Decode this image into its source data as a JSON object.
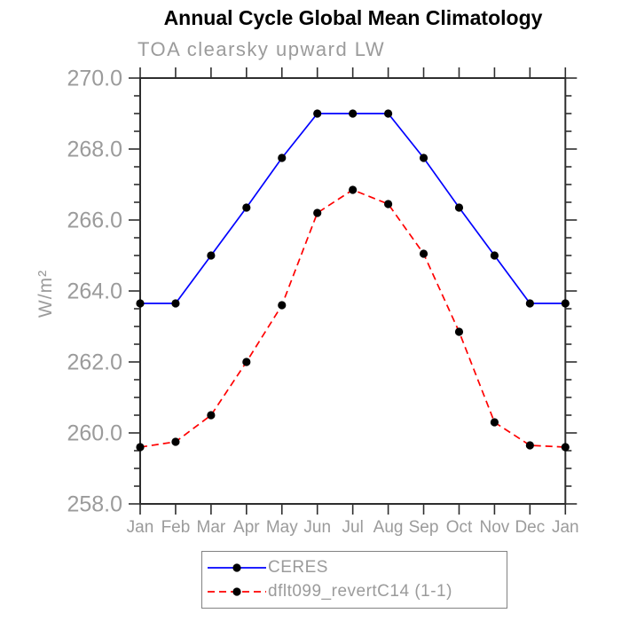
{
  "chart_data": {
    "type": "line",
    "title": "Annual Cycle Global Mean Climatology",
    "subtitle": "TOA clearsky upward LW",
    "ylabel": "W/m²",
    "xlabel": "",
    "categories": [
      "Jan",
      "Feb",
      "Mar",
      "Apr",
      "May",
      "Jun",
      "Jul",
      "Aug",
      "Sep",
      "Oct",
      "Nov",
      "Dec",
      "Jan"
    ],
    "ylim": [
      258.0,
      270.0
    ],
    "ytick_major": 2.0,
    "ytick_minor": 0.5,
    "yticks": [
      270.0,
      268.0,
      266.0,
      264.0,
      262.0,
      260.0,
      258.0
    ],
    "grid": false,
    "legend_position": "bottom-center-boxed",
    "series": [
      {
        "name": "CERES",
        "color": "#0000ff",
        "style": "solid",
        "marker": "black-dot",
        "values": [
          263.65,
          263.65,
          265.0,
          266.35,
          267.75,
          269.0,
          269.0,
          269.0,
          267.75,
          266.35,
          265.0,
          263.65,
          263.65
        ]
      },
      {
        "name": "dflt099_revertC14 (1-1)",
        "color": "#ff0000",
        "style": "dashed",
        "marker": "black-dot",
        "values": [
          259.6,
          259.75,
          260.5,
          262.0,
          263.6,
          266.2,
          266.85,
          266.45,
          265.05,
          262.85,
          260.3,
          259.65,
          259.6
        ]
      }
    ],
    "colors": {
      "title": "#000000",
      "labels": "#9b9b9b",
      "axis": "#2e2e2e",
      "marker": "#000000",
      "legend_border": "#828282"
    }
  }
}
